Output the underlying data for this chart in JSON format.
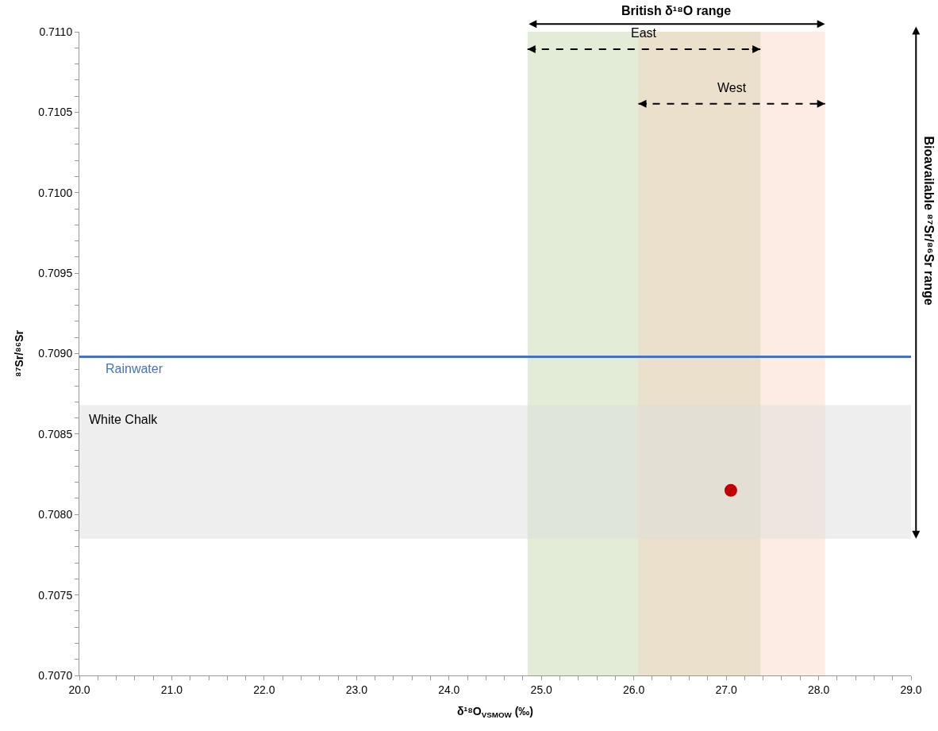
{
  "chart_data": {
    "type": "scatter",
    "title": "British δ¹⁸O range",
    "xlabel": "δ¹⁸O$_{VSMOW}$ (‰)",
    "ylabel": "⁸⁷Sr/⁸⁶Sr",
    "series": [
      {
        "color": "#c00000",
        "x": [
          27.05
        ],
        "values": [
          0.70815
        ]
      }
    ],
    "xlim": [
      20.0,
      29.0
    ],
    "ylim": [
      0.707,
      0.711
    ],
    "xticks": [
      {
        "value": 20.0,
        "label": "20.0"
      },
      {
        "value": 20.2,
        "label": null
      },
      {
        "value": 20.4,
        "label": null
      },
      {
        "value": 20.6,
        "label": null
      },
      {
        "value": 20.8,
        "label": null
      },
      {
        "value": 21.0,
        "label": "21.0"
      },
      {
        "value": 21.2,
        "label": null
      },
      {
        "value": 21.4,
        "label": null
      },
      {
        "value": 21.6,
        "label": null
      },
      {
        "value": 21.8,
        "label": null
      },
      {
        "value": 22.0,
        "label": "22.0"
      },
      {
        "value": 22.2,
        "label": null
      },
      {
        "value": 22.4,
        "label": null
      },
      {
        "value": 22.6,
        "label": null
      },
      {
        "value": 22.8,
        "label": null
      },
      {
        "value": 23.0,
        "label": "23.0"
      },
      {
        "value": 23.2,
        "label": null
      },
      {
        "value": 23.4,
        "label": null
      },
      {
        "value": 23.6,
        "label": null
      },
      {
        "value": 23.8,
        "label": null
      },
      {
        "value": 24.0,
        "label": "24.0"
      },
      {
        "value": 24.2,
        "label": null
      },
      {
        "value": 24.4,
        "label": null
      },
      {
        "value": 24.6,
        "label": null
      },
      {
        "value": 24.8,
        "label": null
      },
      {
        "value": 25.0,
        "label": "25.0"
      },
      {
        "value": 25.2,
        "label": null
      },
      {
        "value": 25.4,
        "label": null
      },
      {
        "value": 25.6,
        "label": null
      },
      {
        "value": 25.8,
        "label": null
      },
      {
        "value": 26.0,
        "label": "26.0"
      },
      {
        "value": 26.2,
        "label": null
      },
      {
        "value": 26.4,
        "label": null
      },
      {
        "value": 26.6,
        "label": null
      },
      {
        "value": 26.8,
        "label": null
      },
      {
        "value": 27.0,
        "label": "27.0"
      },
      {
        "value": 27.2,
        "label": null
      },
      {
        "value": 27.4,
        "label": null
      },
      {
        "value": 27.6,
        "label": null
      },
      {
        "value": 27.8,
        "label": null
      },
      {
        "value": 28.0,
        "label": "28.0"
      },
      {
        "value": 28.2,
        "label": null
      },
      {
        "value": 28.4,
        "label": null
      },
      {
        "value": 28.6,
        "label": null
      },
      {
        "value": 28.8,
        "label": null
      },
      {
        "value": 29.0,
        "label": "29.0"
      }
    ],
    "yticks": [
      {
        "value": 0.707,
        "label": "0.7070"
      },
      {
        "value": 0.7071,
        "label": null
      },
      {
        "value": 0.7072,
        "label": null
      },
      {
        "value": 0.7073,
        "label": null
      },
      {
        "value": 0.7074,
        "label": null
      },
      {
        "value": 0.7075,
        "label": "0.7075"
      },
      {
        "value": 0.7076,
        "label": null
      },
      {
        "value": 0.7077,
        "label": null
      },
      {
        "value": 0.7078,
        "label": null
      },
      {
        "value": 0.7079,
        "label": null
      },
      {
        "value": 0.708,
        "label": "0.7080"
      },
      {
        "value": 0.7081,
        "label": null
      },
      {
        "value": 0.7082,
        "label": null
      },
      {
        "value": 0.7083,
        "label": null
      },
      {
        "value": 0.7084,
        "label": null
      },
      {
        "value": 0.7085,
        "label": "0.7085"
      },
      {
        "value": 0.7086,
        "label": null
      },
      {
        "value": 0.7087,
        "label": null
      },
      {
        "value": 0.7088,
        "label": null
      },
      {
        "value": 0.7089,
        "label": null
      },
      {
        "value": 0.709,
        "label": "0.7090"
      },
      {
        "value": 0.7091,
        "label": null
      },
      {
        "value": 0.7092,
        "label": null
      },
      {
        "value": 0.7093,
        "label": null
      },
      {
        "value": 0.7094,
        "label": null
      },
      {
        "value": 0.7095,
        "label": "0.7095"
      },
      {
        "value": 0.7096,
        "label": null
      },
      {
        "value": 0.7097,
        "label": null
      },
      {
        "value": 0.7098,
        "label": null
      },
      {
        "value": 0.7099,
        "label": null
      },
      {
        "value": 0.71,
        "label": "0.7100"
      },
      {
        "value": 0.7101,
        "label": null
      },
      {
        "value": 0.7102,
        "label": null
      },
      {
        "value": 0.7103,
        "label": null
      },
      {
        "value": 0.7104,
        "label": null
      },
      {
        "value": 0.7105,
        "label": "0.7105"
      },
      {
        "value": 0.7106,
        "label": null
      },
      {
        "value": 0.7107,
        "label": null
      },
      {
        "value": 0.7108,
        "label": null
      },
      {
        "value": 0.7109,
        "label": null
      },
      {
        "value": 0.711,
        "label": "0.7110"
      }
    ],
    "ref_lines": [
      {
        "axis": "y",
        "value": 0.70898,
        "label": "Rainwater",
        "color": "#4472c4",
        "line_style": "solid"
      }
    ],
    "bands": [
      {
        "axis": "x",
        "from": 24.85,
        "to": 27.37,
        "label": "East",
        "color": "#c5d9b0"
      },
      {
        "axis": "x",
        "from": 26.05,
        "to": 28.07,
        "label": "West",
        "color": "#f8cfb8"
      },
      {
        "axis": "y",
        "from": 0.70785,
        "to": 0.70868,
        "label": "White Chalk",
        "color": "#dedede"
      }
    ],
    "annotations": [
      "Bioavailable ⁸⁷Sr/⁸⁶Sr range"
    ],
    "marker": "circle",
    "grid": false
  }
}
